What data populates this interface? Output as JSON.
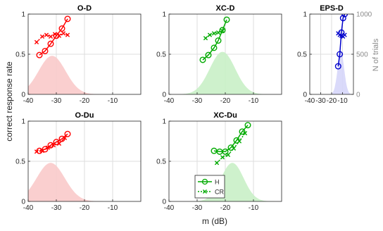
{
  "figure": {
    "ylabel_left": "correct response rate",
    "ylabel_right": "N of trials",
    "xlabel": "m (dB)"
  },
  "legend": {
    "entries": [
      {
        "label": "H",
        "style": "solid",
        "marker": "circle"
      },
      {
        "label": "CR",
        "style": "dotted",
        "marker": "x"
      }
    ],
    "color": "#00aa00"
  },
  "chart_data": [
    {
      "type": "line",
      "title": "O-D",
      "color": "#ff0000",
      "fill": "#f9caca",
      "xlim": [
        -40,
        0
      ],
      "ylim": [
        0,
        1
      ],
      "xticks": [
        -40,
        -30,
        -20,
        -10
      ],
      "yticks": [
        0,
        0.5,
        1
      ],
      "show_right_axis": false,
      "series": [
        {
          "name": "H",
          "marker": "circle",
          "x": [
            -36,
            -34,
            -32,
            -30,
            -28,
            -26
          ],
          "y": [
            0.49,
            0.54,
            0.63,
            0.73,
            0.82,
            0.94
          ]
        },
        {
          "name": "CR",
          "marker": "x",
          "x": [
            -37,
            -35,
            -33.5,
            -32,
            -30.5,
            -29,
            -27.5,
            -26
          ],
          "y": [
            0.65,
            0.72,
            0.74,
            0.72,
            0.75,
            0.73,
            0.76,
            0.74
          ]
        }
      ],
      "trials": {
        "ylim": [
          0,
          1000
        ],
        "mean": -31.5,
        "sd": 4.8,
        "peak": 480
      }
    },
    {
      "type": "line",
      "title": "XC-D",
      "color": "#00aa00",
      "fill": "#c9efc6",
      "xlim": [
        -40,
        0
      ],
      "ylim": [
        0,
        1
      ],
      "xticks": [
        -40,
        -30,
        -20,
        -10
      ],
      "yticks": [
        0,
        0.5,
        1
      ],
      "show_right_axis": false,
      "series": [
        {
          "name": "H",
          "marker": "circle",
          "x": [
            -28,
            -26,
            -24,
            -22.5,
            -21,
            -19.5
          ],
          "y": [
            0.43,
            0.49,
            0.58,
            0.67,
            0.8,
            0.93
          ]
        },
        {
          "name": "CR",
          "marker": "x",
          "x": [
            -27,
            -25.5,
            -24,
            -22.5,
            -21
          ],
          "y": [
            0.7,
            0.74,
            0.76,
            0.77,
            0.79
          ]
        }
      ],
      "trials": {
        "ylim": [
          0,
          1000
        ],
        "mean": -21,
        "sd": 4.5,
        "peak": 530
      }
    },
    {
      "type": "line",
      "title": "EPS-D",
      "color": "#0000cc",
      "fill": "#d6d6fa",
      "xlim": [
        -40,
        0
      ],
      "ylim": [
        0,
        1
      ],
      "xticks": [
        -40,
        -30,
        -20,
        -10
      ],
      "yticks": [
        0,
        0.5,
        1
      ],
      "show_right_axis": true,
      "yticks_right": [
        0,
        500,
        1000
      ],
      "series": [
        {
          "name": "H",
          "marker": "circle",
          "x": [
            -14,
            -12.5,
            -11,
            -9.5,
            -8
          ],
          "y": [
            0.35,
            0.5,
            0.77,
            0.95,
            1.0
          ]
        },
        {
          "name": "CR",
          "marker": "x",
          "x": [
            -14,
            -12.5,
            -11,
            -9.5,
            -8
          ],
          "y": [
            0.76,
            0.74,
            0.73,
            0.72,
            0.74
          ]
        }
      ],
      "trials": {
        "ylim": [
          0,
          1000
        ],
        "mean": -11.5,
        "sd": 3,
        "peak": 530
      }
    },
    {
      "type": "line",
      "title": "O-Du",
      "color": "#ff0000",
      "fill": "#f9caca",
      "xlim": [
        -40,
        0
      ],
      "ylim": [
        0,
        1
      ],
      "xticks": [
        -40,
        -30,
        -20,
        -10
      ],
      "yticks": [
        0,
        0.5,
        1
      ],
      "show_right_axis": false,
      "series": [
        {
          "name": "H",
          "marker": "circle",
          "x": [
            -36,
            -34,
            -32,
            -30,
            -28,
            -26
          ],
          "y": [
            0.63,
            0.65,
            0.7,
            0.74,
            0.78,
            0.84
          ]
        },
        {
          "name": "CR",
          "marker": "x",
          "x": [
            -37,
            -35,
            -33,
            -31,
            -29,
            -27
          ],
          "y": [
            0.62,
            0.63,
            0.67,
            0.7,
            0.72,
            0.79
          ]
        }
      ],
      "trials": {
        "ylim": [
          0,
          1000
        ],
        "mean": -32,
        "sd": 5,
        "peak": 480
      }
    },
    {
      "type": "line",
      "title": "XC-Du",
      "color": "#00aa00",
      "fill": "#c9efc6",
      "xlim": [
        -40,
        0
      ],
      "ylim": [
        0,
        1
      ],
      "xticks": [
        -40,
        -30,
        -20,
        -10
      ],
      "yticks": [
        0,
        0.5,
        1
      ],
      "show_right_axis": false,
      "series": [
        {
          "name": "H",
          "marker": "circle",
          "x": [
            -24,
            -22,
            -20,
            -18,
            -16,
            -14,
            -12
          ],
          "y": [
            0.63,
            0.62,
            0.62,
            0.67,
            0.76,
            0.87,
            0.95
          ]
        },
        {
          "name": "CR",
          "marker": "x",
          "x": [
            -23,
            -21,
            -19,
            -17,
            -15,
            -13
          ],
          "y": [
            0.48,
            0.55,
            0.58,
            0.66,
            0.75,
            0.85
          ]
        }
      ],
      "trials": {
        "ylim": [
          0,
          1000
        ],
        "mean": -17.5,
        "sd": 4,
        "peak": 480
      }
    }
  ]
}
